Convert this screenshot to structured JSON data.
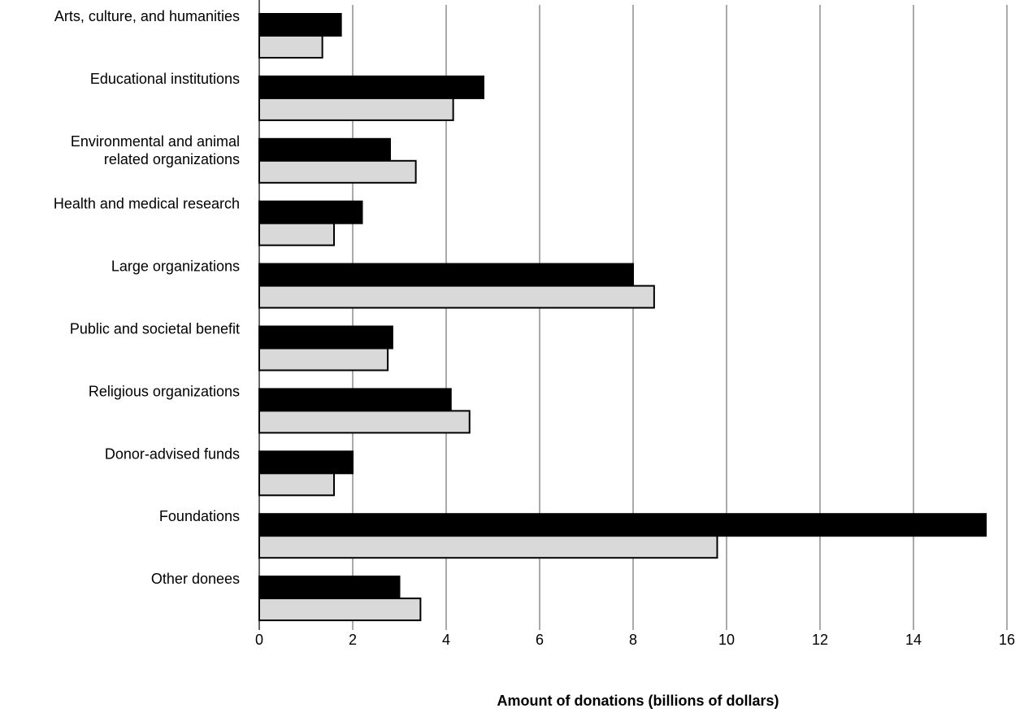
{
  "chart_data": {
    "type": "bar",
    "orientation": "horizontal",
    "categories": [
      "Arts, culture, and humanities",
      "Educational institutions",
      "Environmental and animal related organizations",
      "Health and medical research",
      "Large organizations",
      "Public and societal benefit",
      "Religious organizations",
      "Donor-advised funds",
      "Foundations",
      "Other donees"
    ],
    "category_label_lines": [
      [
        "Arts, culture, and humanities"
      ],
      [
        "Educational institutions"
      ],
      [
        "Environmental and animal",
        "related organizations"
      ],
      [
        "Health and medical research"
      ],
      [
        "Large organizations"
      ],
      [
        "Public and societal benefit"
      ],
      [
        "Religious organizations"
      ],
      [
        "Donor-advised funds"
      ],
      [
        "Foundations"
      ],
      [
        "Other donees"
      ]
    ],
    "series": [
      {
        "values": [
          1.75,
          4.8,
          2.8,
          2.2,
          8.0,
          2.85,
          4.1,
          2.0,
          15.55,
          3.0
        ],
        "color": "#000000"
      },
      {
        "values": [
          1.35,
          4.15,
          3.35,
          1.6,
          8.45,
          2.75,
          4.5,
          1.6,
          9.8,
          3.45
        ],
        "color": "#d9d9d9"
      }
    ],
    "xlabel": "Amount of donations (billions of dollars)",
    "ylabel": "",
    "title": "",
    "xlim": [
      0,
      16
    ],
    "x_ticks": [
      "0",
      "2",
      "4",
      "6",
      "8",
      "10",
      "12",
      "14",
      "16"
    ],
    "grid": "vertical",
    "legend": "none"
  }
}
